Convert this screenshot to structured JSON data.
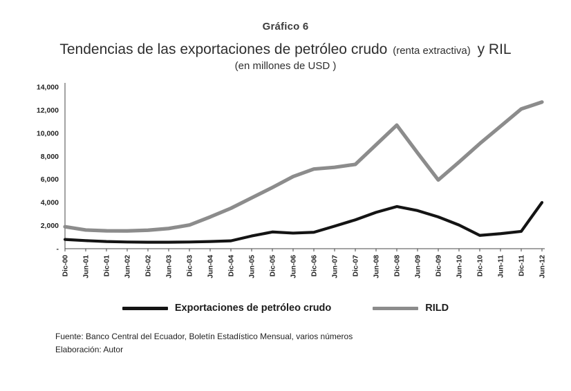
{
  "header": {
    "kicker": "Gráfico 6",
    "title_main": "Tendencias de las exportaciones de petróleo crudo",
    "title_paren": "(renta extractiva)",
    "title_tail": "y RIL",
    "subtitle": "(en millones de USD )"
  },
  "chart_data": {
    "type": "line",
    "title": "Tendencias de las exportaciones de petróleo crudo (renta extractiva) y RIL (en millones de USD)",
    "x": [
      "Dic-00",
      "Jun-01",
      "Dic-01",
      "Jun-02",
      "Dic-02",
      "Jun-03",
      "Dic-03",
      "Jun-04",
      "Dic-04",
      "Jun-05",
      "Dic-05",
      "Jun-06",
      "Dic-06",
      "Jun-07",
      "Dic-07",
      "Jun-08",
      "Dic-08",
      "Jun-09",
      "Dic-09",
      "Jun-10",
      "Dic-10",
      "Jun-11",
      "Dic-11",
      "Jun-12"
    ],
    "series": [
      {
        "name": "RILD",
        "color": "#8c8c8c",
        "values": [
          1900,
          1620,
          1550,
          1540,
          1600,
          1750,
          2050,
          2750,
          3500,
          4400,
          5300,
          6250,
          6900,
          7050,
          7300,
          9000,
          10700,
          8300,
          5950,
          7500,
          9100,
          10600,
          12100,
          12700
        ]
      },
      {
        "name": "Exportaciones de petróleo crudo",
        "color": "#141414",
        "values": [
          800,
          700,
          620,
          580,
          560,
          560,
          580,
          620,
          680,
          1100,
          1450,
          1350,
          1420,
          1950,
          2500,
          3150,
          3650,
          3300,
          2750,
          2050,
          1150,
          1300,
          1500,
          4000
        ]
      }
    ],
    "ylim": [
      0,
      14000
    ],
    "yticks": [
      0,
      2000,
      4000,
      6000,
      8000,
      10000,
      12000,
      14000
    ],
    "ytick_labels": [
      "-",
      "2,000",
      "4,000",
      "6,000",
      "8,000",
      "10,000",
      "12,000",
      "14,000"
    ],
    "grid": false,
    "legend_position": "bottom",
    "legend_order": [
      "Exportaciones de petróleo crudo",
      "RILD"
    ]
  },
  "footer": {
    "line1": "Fuente: Banco Central del Ecuador, Boletín Estadístico Mensual, varios números",
    "line2": "Elaboración: Autor"
  }
}
